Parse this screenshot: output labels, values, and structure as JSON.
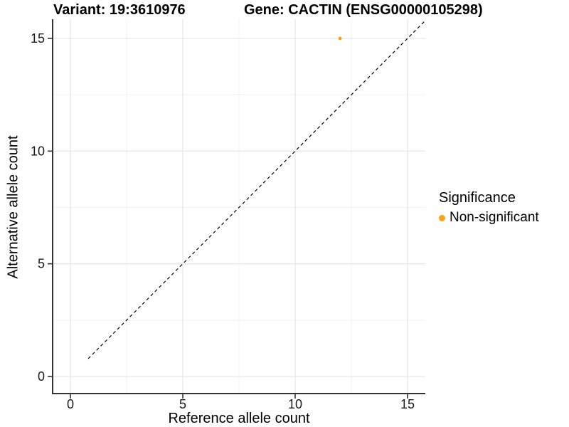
{
  "chart_data": {
    "type": "scatter",
    "title_left": "Variant: 19:3610976",
    "title_right": "Gene: CACTIN (ENSG00000105298)",
    "xlabel": "Reference allele count",
    "ylabel": "Alternative allele count",
    "xlim": [
      -0.79,
      15.79
    ],
    "ylim": [
      -0.76,
      15.85
    ],
    "xticks": [
      0,
      5,
      10,
      15
    ],
    "yticks": [
      0,
      5,
      10,
      15
    ],
    "x_minor_ticks": [
      2.5,
      7.5,
      12.5
    ],
    "y_minor_ticks": [
      2.5,
      7.5,
      12.5
    ],
    "grid": "major+minor",
    "identity_line": {
      "equation": "y=x",
      "style": "dashed",
      "color": "#000000"
    },
    "series": [
      {
        "name": "Non-significant",
        "color": "#F9A11B",
        "points": [
          {
            "x": 12,
            "y": 15
          }
        ]
      }
    ],
    "legend": {
      "title": "Significance",
      "position": "right",
      "entries": [
        {
          "label": "Non-significant",
          "color": "#F9A11B"
        }
      ]
    },
    "colors": {
      "grid_major": "#e6e6e6",
      "grid_minor": "#f2f2f2",
      "axis_line": "#333333",
      "tick_text": "#1a1a1a"
    }
  }
}
